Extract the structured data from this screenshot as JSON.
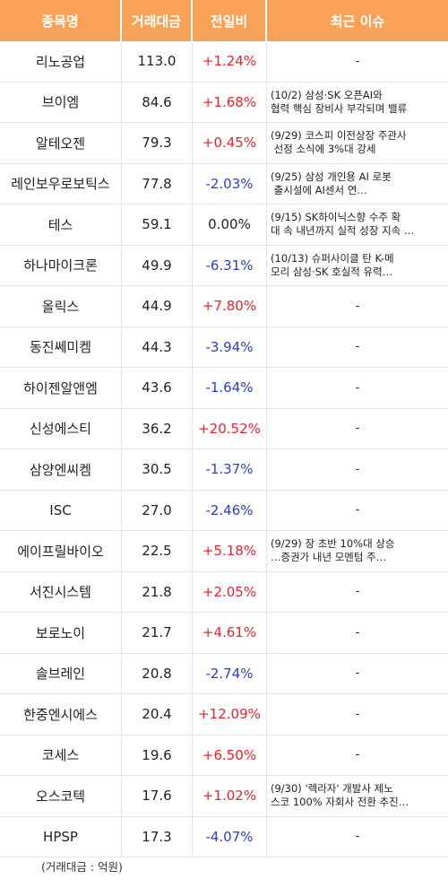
{
  "header": {
    "col_name": "종목명",
    "col_amount": "거래대금",
    "col_change": "전일비",
    "col_news": "최근 이슈"
  },
  "rows": [
    {
      "name": "리노공업",
      "amount": "113.0",
      "change": "+1.24%",
      "dir": "up",
      "news": "-"
    },
    {
      "name": "브이엠",
      "amount": "84.6",
      "change": "+1.68%",
      "dir": "up",
      "news": "(10/2) 삼성·SK 오픈AI와\n협력 핵심 장비사 부각되며 밸류"
    },
    {
      "name": "알테오젠",
      "amount": "79.3",
      "change": "+0.45%",
      "dir": "up",
      "news": "(9/29) 코스피 이전상장 주관사\n 선정 소식에 3%대 강세"
    },
    {
      "name": "레인보우로보틱스",
      "amount": "77.8",
      "change": "-2.03%",
      "dir": "down",
      "news": "(9/25) 삼성 개인용 AI 로봇\n 출시설에 AI센서 연…"
    },
    {
      "name": "테스",
      "amount": "59.1",
      "change": "0.00%",
      "dir": "flat",
      "news": "(9/15) SK하이닉스향 수주 확\n대 속 내년까지 실적 성장 지속 …"
    },
    {
      "name": "하나마이크론",
      "amount": "49.9",
      "change": "-6.31%",
      "dir": "down",
      "news": "(10/13) 슈퍼사이클 탄 K-메\n모리 삼성·SK 호실적 유력…"
    },
    {
      "name": "올릭스",
      "amount": "44.9",
      "change": "+7.80%",
      "dir": "up",
      "news": "-"
    },
    {
      "name": "동진쎄미켐",
      "amount": "44.3",
      "change": "-3.94%",
      "dir": "down",
      "news": "-"
    },
    {
      "name": "하이젠알앤엠",
      "amount": "43.6",
      "change": "-1.64%",
      "dir": "down",
      "news": "-"
    },
    {
      "name": "신성에스티",
      "amount": "36.2",
      "change": "+20.52%",
      "dir": "up",
      "news": "-"
    },
    {
      "name": "삼양엔씨켐",
      "amount": "30.5",
      "change": "-1.37%",
      "dir": "down",
      "news": "-"
    },
    {
      "name": "ISC",
      "amount": "27.0",
      "change": "-2.46%",
      "dir": "down",
      "news": "-"
    },
    {
      "name": "에이프릴바이오",
      "amount": "22.5",
      "change": "+5.18%",
      "dir": "up",
      "news": "(9/29) 장 초반 10%대 상승\n…증권가 내년 모멘텀 주…"
    },
    {
      "name": "서진시스템",
      "amount": "21.8",
      "change": "+2.05%",
      "dir": "up",
      "news": "-"
    },
    {
      "name": "보로노이",
      "amount": "21.7",
      "change": "+4.61%",
      "dir": "up",
      "news": "-"
    },
    {
      "name": "솔브레인",
      "amount": "20.8",
      "change": "-2.74%",
      "dir": "down",
      "news": "-"
    },
    {
      "name": "한중엔시에스",
      "amount": "20.4",
      "change": "+12.09%",
      "dir": "up",
      "news": "-"
    },
    {
      "name": "코세스",
      "amount": "19.6",
      "change": "+6.50%",
      "dir": "up",
      "news": "-"
    },
    {
      "name": "오스코텍",
      "amount": "17.6",
      "change": "+1.02%",
      "dir": "up",
      "news": "(9/30) '렉라자' 개발사 제노\n스코 100% 자회사 전환 추진…"
    },
    {
      "name": "HPSP",
      "amount": "17.3",
      "change": "-4.07%",
      "dir": "down",
      "news": "-"
    }
  ],
  "footnote": "(거래대금 : 억원)",
  "colors": {
    "header_bg": "#f7a256",
    "up": "#e8222b",
    "down": "#2b3fc4"
  }
}
